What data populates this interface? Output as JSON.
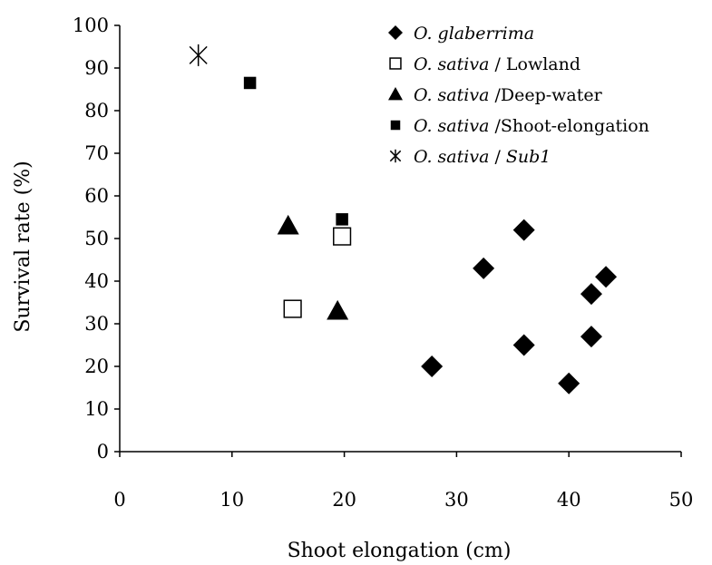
{
  "chart_data": {
    "type": "scatter",
    "title": "",
    "xlabel": "Shoot elongation (cm)",
    "ylabel": "Survival rate (%)",
    "xlim": [
      0,
      50
    ],
    "ylim": [
      0,
      100
    ],
    "xticks": [
      "0",
      "10",
      "20",
      "30",
      "40",
      "50"
    ],
    "yticks": [
      "0",
      "10",
      "20",
      "30",
      "40",
      "50",
      "60",
      "70",
      "80",
      "90",
      "100"
    ],
    "grid": false,
    "legend_position": "top-right",
    "series": [
      {
        "name": "O. glaberrima",
        "legend_parts": [
          {
            "text": "O. glaberrima",
            "italic": true
          }
        ],
        "marker": "diamond",
        "points": [
          [
            27.8,
            20
          ],
          [
            32.4,
            43
          ],
          [
            36,
            52
          ],
          [
            36,
            25
          ],
          [
            40,
            16
          ],
          [
            42,
            37
          ],
          [
            42,
            27
          ],
          [
            43.3,
            41
          ]
        ]
      },
      {
        "name": "O. sativa / Lowland",
        "legend_parts": [
          {
            "text": "O. sativa",
            "italic": true
          },
          {
            "text": " / Lowland",
            "italic": false
          }
        ],
        "marker": "open-square",
        "points": [
          [
            15.4,
            33.5
          ],
          [
            19.8,
            50.5
          ]
        ]
      },
      {
        "name": "O. sativa /Deep-water",
        "legend_parts": [
          {
            "text": "O. sativa",
            "italic": true
          },
          {
            "text": "  /Deep-water",
            "italic": false
          }
        ],
        "marker": "triangle",
        "points": [
          [
            15,
            53
          ],
          [
            19.4,
            33
          ]
        ]
      },
      {
        "name": "O. sativa /Shoot-elongation",
        "legend_parts": [
          {
            "text": "O. sativa",
            "italic": true
          },
          {
            "text": " /Shoot-elongation",
            "italic": false
          }
        ],
        "marker": "filled-square",
        "points": [
          [
            11.6,
            86.5
          ],
          [
            19.8,
            54.5
          ]
        ]
      },
      {
        "name": "O. sativa / Sub1",
        "legend_parts": [
          {
            "text": "O. sativa",
            "italic": true
          },
          {
            "text": " / ",
            "italic": false
          },
          {
            "text": "Sub1",
            "italic": true
          }
        ],
        "marker": "asterisk",
        "points": [
          [
            7,
            93
          ]
        ]
      }
    ]
  }
}
